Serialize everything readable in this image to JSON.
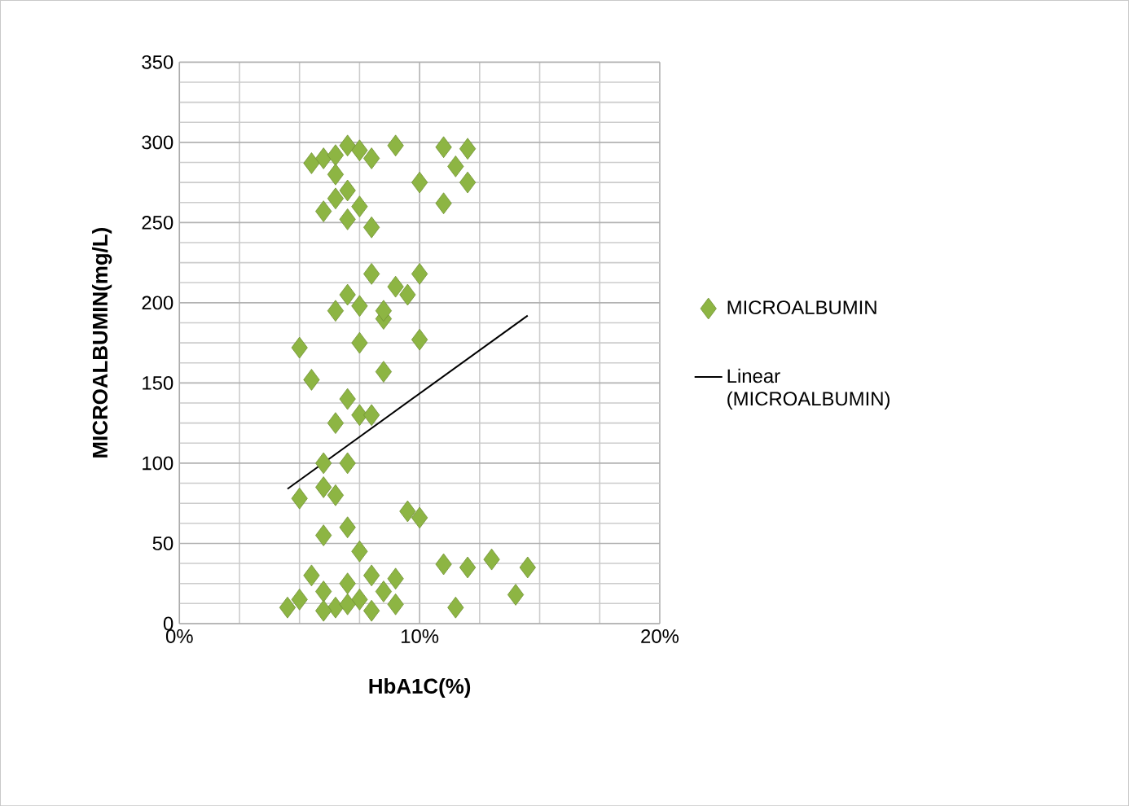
{
  "chart_data": {
    "type": "scatter",
    "xlabel": "HbA1C(%)",
    "ylabel": "MICROALBUMIN(mg/L)",
    "xlim": [
      0,
      20
    ],
    "xticks": [
      {
        "value": 0,
        "label": "0%"
      },
      {
        "value": 10,
        "label": "10%"
      },
      {
        "value": 20,
        "label": "20%"
      }
    ],
    "ylim": [
      0,
      350
    ],
    "yticks": [
      0,
      50,
      100,
      150,
      200,
      250,
      300,
      350
    ],
    "grid": true,
    "legend": "right",
    "marker": "diamond",
    "series": [
      {
        "name": "MICROALBUMIN",
        "type": "scatter",
        "color": "#8db543",
        "x": [
          5.5,
          6,
          6.5,
          7,
          7.5,
          8,
          9,
          11,
          12,
          6,
          6.5,
          7,
          7.5,
          8,
          10,
          11,
          12,
          6.5,
          7,
          11.5,
          5,
          6.5,
          7,
          7.5,
          8,
          8.5,
          9,
          9.5,
          10,
          10,
          7.5,
          8.5,
          5.5,
          6.5,
          7,
          7.5,
          6,
          7,
          8.5,
          8,
          5,
          6,
          6.5,
          6,
          7,
          9.5,
          10,
          7.5,
          4.5,
          5,
          5.5,
          6,
          6.5,
          7,
          7.5,
          8,
          8.5,
          9,
          6,
          7,
          8,
          11,
          12,
          13,
          14.5,
          11.5,
          14,
          9
        ],
        "values": [
          287,
          290,
          292,
          298,
          295,
          290,
          298,
          297,
          296,
          257,
          265,
          252,
          260,
          247,
          275,
          262,
          275,
          280,
          270,
          285,
          172,
          195,
          205,
          198,
          218,
          190,
          210,
          205,
          218,
          177,
          175,
          195,
          152,
          125,
          140,
          130,
          100,
          100,
          157,
          130,
          78,
          85,
          80,
          55,
          60,
          70,
          66,
          45,
          10,
          15,
          30,
          20,
          10,
          25,
          15,
          30,
          20,
          28,
          8,
          12,
          8,
          37,
          35,
          40,
          35,
          10,
          18,
          12
        ]
      },
      {
        "name": "Linear (MICROALBUMIN)",
        "type": "line",
        "color": "#000000",
        "marker": "none",
        "line_style": "solid",
        "x": [
          4.5,
          14.5
        ],
        "values": [
          84,
          192
        ]
      }
    ]
  }
}
